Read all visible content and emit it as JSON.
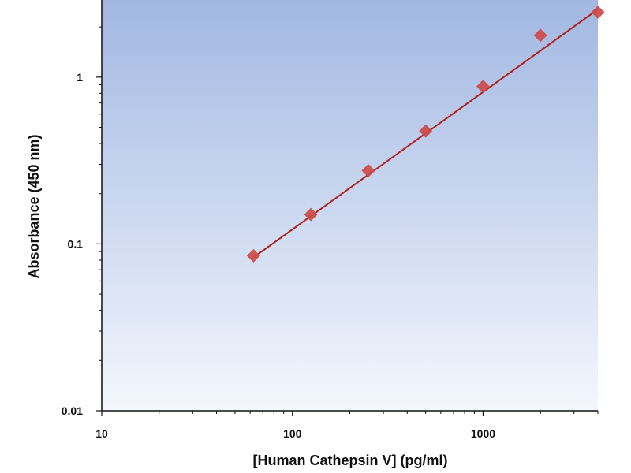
{
  "chart_data": {
    "type": "scatter",
    "title": "",
    "xlabel": "[Human Cathepsin V] (pg/ml)",
    "ylabel": "Absorbance (450 nm)",
    "x_scale": "log",
    "y_scale": "log",
    "xlim": [
      10,
      4000
    ],
    "ylim": [
      0.01,
      2.9
    ],
    "x_ticks": [
      10,
      100,
      1000
    ],
    "x_tick_labels": [
      "10",
      "100",
      "1000"
    ],
    "y_ticks": [
      0.01,
      0.1,
      1
    ],
    "y_tick_labels": [
      "0.01",
      "0.1",
      "1"
    ],
    "grid": false,
    "legend": "none",
    "points": [
      {
        "x": 62.5,
        "y": 0.085
      },
      {
        "x": 125,
        "y": 0.15
      },
      {
        "x": 250,
        "y": 0.275
      },
      {
        "x": 500,
        "y": 0.475
      },
      {
        "x": 1000,
        "y": 0.88
      },
      {
        "x": 2000,
        "y": 1.78
      },
      {
        "x": 4000,
        "y": 2.45
      }
    ],
    "fit_line": {
      "x_start": 62.5,
      "y_start": 0.083,
      "x_end": 4000,
      "y_end": 2.55
    },
    "colors": {
      "marker": "#cc4a48",
      "fit_line": "#b01e1e",
      "background_top": "#a2b8e2",
      "background_bottom": "#f4f7fd",
      "axis": "#111111"
    }
  }
}
